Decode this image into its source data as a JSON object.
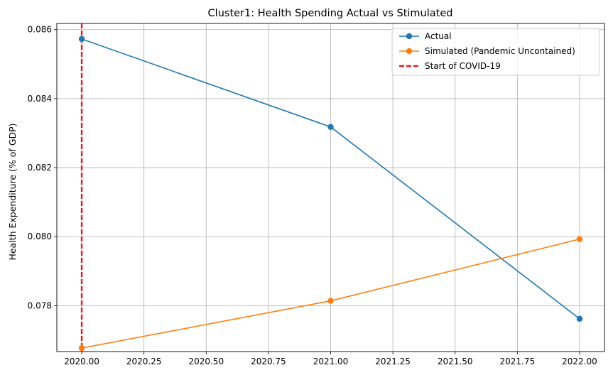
{
  "chart_data": {
    "type": "line",
    "title": "Cluster1: Health Spending Actual vs Stimulated",
    "xlabel": "",
    "ylabel": "Health Expenditure (% of GDP)",
    "xlim": [
      2019.9,
      2022.1
    ],
    "ylim": [
      0.07667,
      0.08618
    ],
    "grid": true,
    "x_ticks": [
      2020.0,
      2020.25,
      2020.5,
      2020.75,
      2021.0,
      2021.25,
      2021.5,
      2021.75,
      2022.0
    ],
    "x_tick_labels": [
      "2020.00",
      "2020.25",
      "2020.50",
      "2020.75",
      "2021.00",
      "2021.25",
      "2021.50",
      "2021.75",
      "2022.00"
    ],
    "y_ticks": [
      0.078,
      0.08,
      0.082,
      0.084,
      0.086
    ],
    "y_tick_labels": [
      "0.078",
      "0.080",
      "0.082",
      "0.084",
      "0.086"
    ],
    "x": [
      2020,
      2021,
      2022
    ],
    "series": [
      {
        "name": "Actual",
        "color": "#1f77b4",
        "marker": "circle",
        "values": [
          0.08573,
          0.08318,
          0.07762
        ]
      },
      {
        "name": "Simulated (Pandemic Uncontained)",
        "color": "#ff7f0e",
        "marker": "circle",
        "values": [
          0.07677,
          0.07814,
          0.07993
        ]
      }
    ],
    "vlines": [
      {
        "name": "Start of COVID-19",
        "x": 2020,
        "color": "#e41a1c",
        "style": "dashed"
      }
    ],
    "legend_position": "top-right"
  }
}
